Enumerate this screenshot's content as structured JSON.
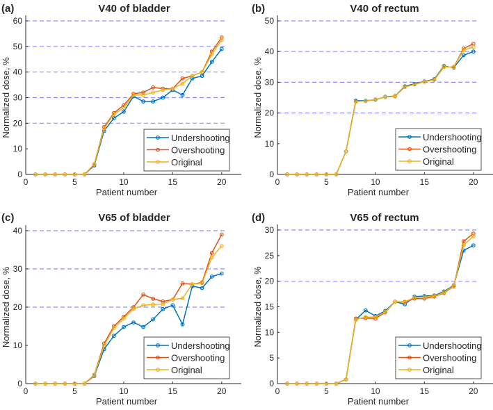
{
  "colors": {
    "Undershooting": "#0072BD",
    "Overshooting": "#D95319",
    "Original": "#EDB120",
    "grid": "#8c8cff",
    "axis": "#262626"
  },
  "chart_data": [
    {
      "type": "line",
      "panel_label": "(a)",
      "title": "V40 of bladder",
      "xlabel": "Patient number",
      "ylabel": "Normalized dose, %",
      "xlim": [
        0,
        22
      ],
      "ylim": [
        0,
        60
      ],
      "xticks": [
        0,
        5,
        10,
        15,
        20
      ],
      "yticks": [
        0,
        10,
        20,
        30,
        40,
        50,
        60
      ],
      "gridlines": [
        20,
        30,
        40,
        50,
        60
      ],
      "legend": "bottom-right",
      "x": [
        1,
        2,
        3,
        4,
        5,
        6,
        7,
        8,
        9,
        10,
        11,
        12,
        13,
        14,
        15,
        16,
        17,
        18,
        19,
        20
      ],
      "series": [
        {
          "name": "Undershooting",
          "values": [
            0,
            0,
            0,
            0,
            0,
            0,
            3.5,
            17,
            22,
            24.5,
            30.5,
            28.5,
            28.5,
            30,
            33,
            31,
            37.5,
            38.5,
            44,
            49
          ]
        },
        {
          "name": "Overshooting",
          "values": [
            0,
            0,
            0,
            0,
            0,
            0,
            4,
            18.5,
            24,
            27,
            31.5,
            32,
            34,
            33.5,
            33.5,
            37.5,
            38.5,
            40,
            48,
            53.5
          ]
        },
        {
          "name": "Original",
          "values": [
            0,
            0,
            0,
            0,
            0,
            0,
            4,
            18,
            23.5,
            26,
            31,
            31,
            32,
            33,
            33.5,
            35.5,
            38.5,
            40,
            47,
            52.5
          ]
        }
      ]
    },
    {
      "type": "line",
      "panel_label": "(b)",
      "title": "V40 of rectum",
      "xlabel": "Patient number",
      "ylabel": "Normalized dose, %",
      "xlim": [
        0,
        22
      ],
      "ylim": [
        0,
        50
      ],
      "xticks": [
        0,
        5,
        10,
        15,
        20
      ],
      "yticks": [
        0,
        10,
        20,
        30,
        40,
        50
      ],
      "gridlines": [
        20,
        30,
        40,
        50
      ],
      "legend": "bottom-right",
      "x": [
        1,
        2,
        3,
        4,
        5,
        6,
        7,
        8,
        9,
        10,
        11,
        12,
        13,
        14,
        15,
        16,
        17,
        18,
        19,
        20
      ],
      "series": [
        {
          "name": "Undershooting",
          "values": [
            0,
            0,
            0,
            0,
            0,
            0,
            7.5,
            24,
            24,
            24.3,
            25.3,
            25.5,
            28.7,
            29.5,
            30.3,
            31,
            35.3,
            34.8,
            38.8,
            40
          ]
        },
        {
          "name": "Overshooting",
          "values": [
            0,
            0,
            0,
            0,
            0,
            0,
            7.5,
            23.8,
            23.9,
            24.4,
            25.2,
            25.4,
            28.5,
            29.3,
            30.2,
            30.8,
            35,
            35,
            41,
            42.5
          ]
        },
        {
          "name": "Original",
          "values": [
            0,
            0,
            0,
            0,
            0,
            0,
            7.5,
            23.7,
            23.9,
            24.4,
            25.2,
            25.4,
            28.5,
            29.3,
            30.2,
            30.8,
            35,
            35,
            40.5,
            41.5
          ]
        }
      ]
    },
    {
      "type": "line",
      "panel_label": "(c)",
      "title": "V65 of bladder",
      "xlabel": "Patient number",
      "ylabel": "Normalized dose, %",
      "xlim": [
        0,
        22
      ],
      "ylim": [
        0,
        40
      ],
      "xticks": [
        0,
        5,
        10,
        15,
        20
      ],
      "yticks": [
        0,
        10,
        20,
        30,
        40
      ],
      "gridlines": [
        20,
        30,
        40
      ],
      "legend": "bottom-right",
      "x": [
        1,
        2,
        3,
        4,
        5,
        6,
        7,
        8,
        9,
        10,
        11,
        12,
        13,
        14,
        15,
        16,
        17,
        18,
        19,
        20
      ],
      "series": [
        {
          "name": "Undershooting",
          "values": [
            0,
            0,
            0,
            0,
            0,
            0,
            2,
            9,
            12.5,
            14.8,
            16,
            14.8,
            16.8,
            19.5,
            20.5,
            15.5,
            25.5,
            25,
            28,
            28.8
          ]
        },
        {
          "name": "Overshooting",
          "values": [
            0,
            0,
            0,
            0,
            0,
            0,
            2.3,
            10.5,
            15,
            17.5,
            20,
            23.3,
            22.2,
            21.5,
            22,
            26.2,
            26,
            26.5,
            34.2,
            39
          ]
        },
        {
          "name": "Original",
          "values": [
            0,
            0,
            0,
            0,
            0,
            0,
            2.2,
            10,
            14.5,
            17,
            19.5,
            20.5,
            20.7,
            20.8,
            22,
            22.3,
            26,
            26.3,
            33,
            36
          ]
        }
      ]
    },
    {
      "type": "line",
      "panel_label": "(d)",
      "title": "V65 of rectum",
      "xlabel": "Patient number",
      "ylabel": "Normalized dose, %",
      "xlim": [
        0,
        22
      ],
      "ylim": [
        0,
        30
      ],
      "xticks": [
        0,
        5,
        10,
        15,
        20
      ],
      "yticks": [
        0,
        5,
        10,
        15,
        20,
        25,
        30
      ],
      "gridlines": [
        20,
        30
      ],
      "legend": "bottom-right",
      "x": [
        1,
        2,
        3,
        4,
        5,
        6,
        7,
        8,
        9,
        10,
        11,
        12,
        13,
        14,
        15,
        16,
        17,
        18,
        19,
        20
      ],
      "series": [
        {
          "name": "Undershooting",
          "values": [
            0,
            0,
            0,
            0,
            0,
            0,
            0.8,
            12.5,
            14.3,
            13.2,
            14.2,
            16,
            15.5,
            17,
            17.1,
            17.2,
            18,
            19.2,
            26,
            27
          ]
        },
        {
          "name": "Overshooting",
          "values": [
            0,
            0,
            0,
            0,
            0,
            0,
            0.8,
            12.7,
            12.8,
            12.7,
            13.9,
            16,
            15.9,
            16.6,
            16.6,
            17,
            17.7,
            19,
            27.8,
            29.3
          ]
        },
        {
          "name": "Original",
          "values": [
            0,
            0,
            0,
            0,
            0,
            0,
            0.8,
            12.5,
            13,
            13,
            14,
            16,
            16,
            16.8,
            16.9,
            17.1,
            17.8,
            19.1,
            27,
            28.8
          ]
        }
      ]
    }
  ]
}
